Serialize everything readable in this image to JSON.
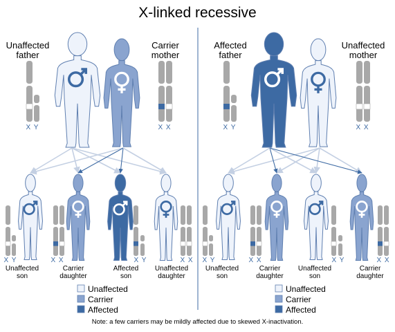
{
  "title": "X-linked recessive",
  "colors": {
    "unaffected": "#eef3fb",
    "carrier": "#8aa4cf",
    "affected": "#3d6aa3",
    "outline": "#5f7fb0",
    "chromosome": "#a8a8a8",
    "arrow_light": "#c4d0e3",
    "arrow_dark": "#3d6aa3",
    "divider": "#3d6aa3"
  },
  "left": {
    "parents": {
      "father_label_1": "Unaffected",
      "father_label_2": "father",
      "father_chrom": "X Y",
      "mother_label_1": "Carrier",
      "mother_label_2": "mother",
      "mother_chrom": "X X"
    },
    "children": [
      {
        "status_1": "Unaffected",
        "status_2": "son",
        "chrom": "X Y"
      },
      {
        "status_1": "Carrier",
        "status_2": "daughter",
        "chrom": "X X"
      },
      {
        "status_1": "Affected",
        "status_2": "son",
        "chrom": "X Y"
      },
      {
        "status_1": "Unaffected",
        "status_2": "daughter",
        "chrom": "X X"
      }
    ]
  },
  "right": {
    "parents": {
      "father_label_1": "Affected",
      "father_label_2": "father",
      "father_chrom": "X Y",
      "mother_label_1": "Unaffected",
      "mother_label_2": "mother",
      "mother_chrom": "X X"
    },
    "children": [
      {
        "status_1": "Unaffected",
        "status_2": "son",
        "chrom": "X Y"
      },
      {
        "status_1": "Carrier",
        "status_2": "daughter",
        "chrom": "X X"
      },
      {
        "status_1": "Unaffected",
        "status_2": "son",
        "chrom": "X Y"
      },
      {
        "status_1": "Carrier",
        "status_2": "daughter",
        "chrom": "X X"
      }
    ]
  },
  "legend": {
    "unaffected": "Unaffected",
    "carrier": "Carrier",
    "affected": "Affected"
  },
  "note": "Note: a few carriers may be mildly affected due to skewed X-inactivation."
}
